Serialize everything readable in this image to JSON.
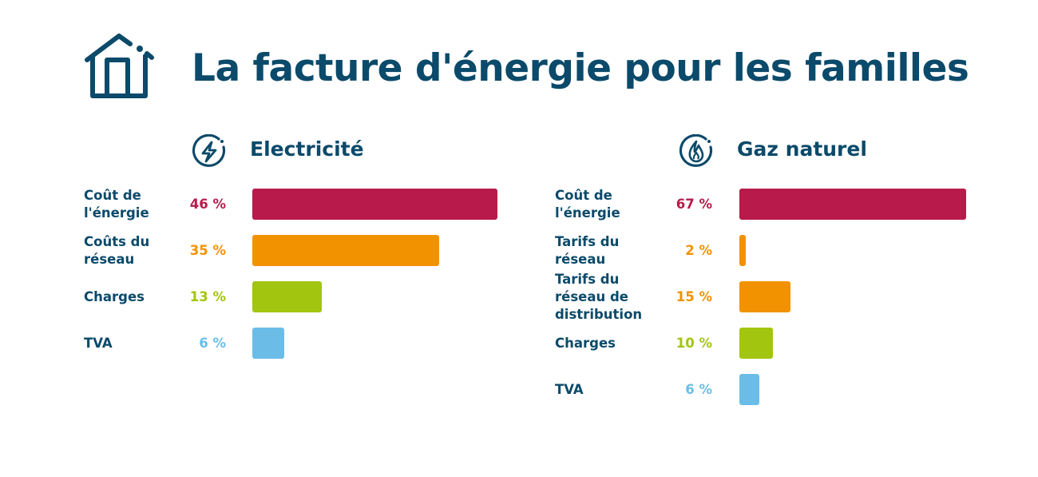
{
  "title": "La facture d'énergie pour les familles",
  "colors": {
    "text": "#0b4a6a",
    "energy": "#b81a4b",
    "network": "#f39200",
    "charges": "#a2c510",
    "tva": "#6bbde8"
  },
  "chart_data": [
    {
      "type": "bar",
      "title": "Electricité",
      "icon": "lightning-icon",
      "categories": [
        "Coût de l'énergie",
        "Coûts du réseau",
        "Charges",
        "TVA"
      ],
      "labels": [
        "46 %",
        "35 %",
        "13 %",
        "6 %"
      ],
      "values": [
        46,
        35,
        13,
        6
      ],
      "unit": "%",
      "colors": [
        "#b81a4b",
        "#f39200",
        "#a2c510",
        "#6bbde8"
      ]
    },
    {
      "type": "bar",
      "title": "Gaz naturel",
      "icon": "flame-icon",
      "categories": [
        "Coût de l'énergie",
        "Tarifs du réseau",
        "Tarifs du réseau de distribution",
        "Charges",
        "TVA"
      ],
      "labels": [
        "67 %",
        "2 %",
        "15 %",
        "10 %",
        "6 %"
      ],
      "values": [
        67,
        2,
        15,
        10,
        6
      ],
      "unit": "%",
      "colors": [
        "#b81a4b",
        "#f39200",
        "#f39200",
        "#a2c510",
        "#6bbde8"
      ]
    }
  ]
}
